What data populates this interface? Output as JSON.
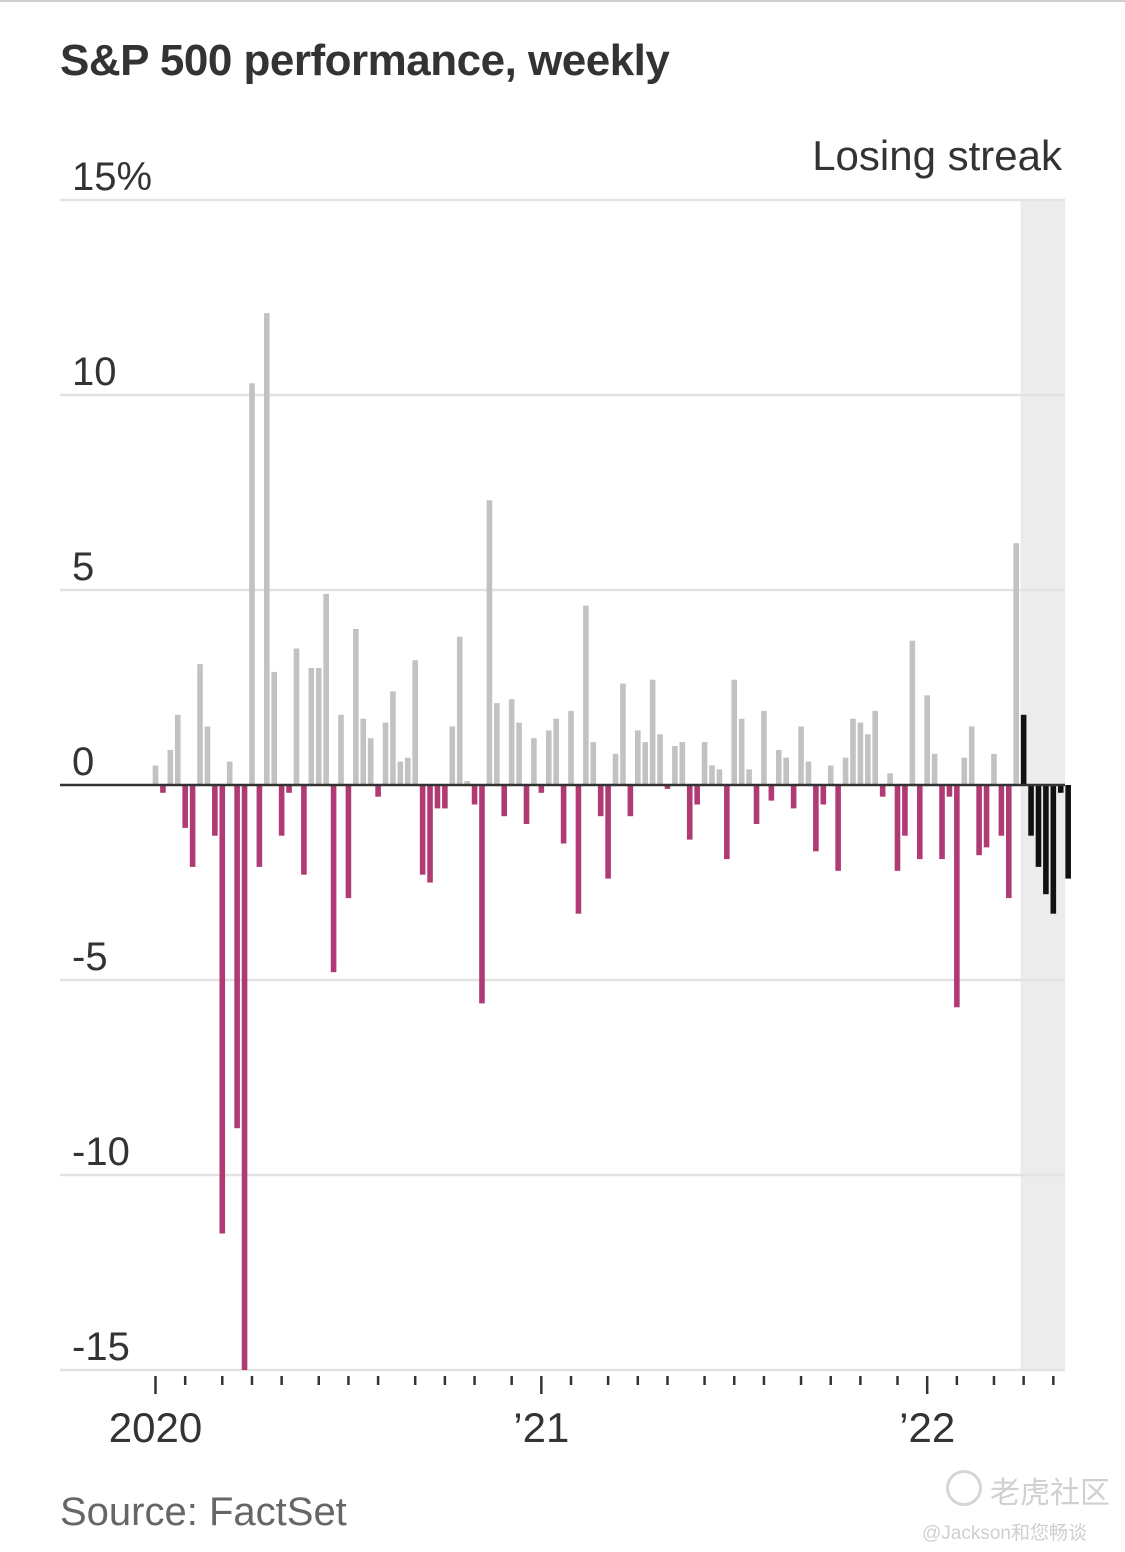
{
  "chart_data": {
    "type": "bar",
    "title": "S&P 500 performance, weekly",
    "source": "Source: FactSet",
    "annotation": "Losing streak",
    "ylabel": "",
    "xlabel": "",
    "ylim": [
      -15,
      15
    ],
    "yticks": [
      {
        "value": 15,
        "label": "15%"
      },
      {
        "value": 10,
        "label": "10"
      },
      {
        "value": 5,
        "label": "5"
      },
      {
        "value": 0,
        "label": "0"
      },
      {
        "value": -5,
        "label": "-5"
      },
      {
        "value": -10,
        "label": "-10"
      },
      {
        "value": -15,
        "label": "-15"
      }
    ],
    "xticks": [
      {
        "week": 0,
        "label": "2020"
      },
      {
        "week": 52,
        "label": "’21"
      },
      {
        "week": 104,
        "label": "’22"
      }
    ],
    "grid": true,
    "colors": {
      "gain": "#c2c2c2",
      "loss": "#b03a73",
      "streak": "#111111",
      "streak_band": "#ececec",
      "grid": "#e2e2e2",
      "zero_line": "#333333",
      "text": "#333333"
    },
    "streak_start_week": 117,
    "week_start": 0,
    "values": [
      0.5,
      -0.2,
      0.9,
      1.8,
      -1.1,
      -2.1,
      3.1,
      1.5,
      -1.3,
      -11.5,
      0.6,
      -8.8,
      -15.0,
      10.3,
      -2.1,
      12.1,
      2.9,
      -1.3,
      -0.2,
      3.5,
      -2.3,
      3.0,
      3.0,
      4.9,
      -4.8,
      1.8,
      -2.9,
      4.0,
      1.7,
      1.2,
      -0.3,
      1.6,
      2.4,
      0.6,
      0.7,
      3.2,
      -2.3,
      -2.5,
      -0.6,
      -0.6,
      1.5,
      3.8,
      0.1,
      -0.5,
      -5.6,
      7.3,
      2.1,
      -0.8,
      2.2,
      1.6,
      -1.0,
      1.2,
      -0.2,
      1.4,
      1.7,
      -1.5,
      1.9,
      -3.3,
      4.6,
      1.1,
      -0.8,
      -2.4,
      0.8,
      2.6,
      -0.8,
      1.4,
      1.1,
      2.7,
      1.3,
      -0.1,
      1.0,
      1.1,
      -1.4,
      -0.5,
      1.1,
      0.5,
      0.4,
      -1.9,
      2.7,
      1.7,
      0.4,
      -1.0,
      1.9,
      -0.4,
      0.9,
      0.7,
      -0.6,
      1.5,
      0.6,
      -1.7,
      -0.5,
      0.5,
      -2.2,
      0.7,
      1.7,
      1.6,
      1.3,
      1.9,
      -0.3,
      0.3,
      -2.2,
      -1.3,
      3.7,
      -1.9,
      2.3,
      0.8,
      -1.9,
      -0.3,
      -5.7,
      0.7,
      1.5,
      -1.8,
      -1.6,
      0.8,
      -1.3,
      -2.9,
      6.2,
      1.8,
      -1.3,
      -2.1,
      -2.8,
      -3.3,
      -0.2,
      -2.4
    ]
  },
  "watermark": {
    "brand": "老虎社区",
    "user": "@Jackson和您畅谈"
  }
}
